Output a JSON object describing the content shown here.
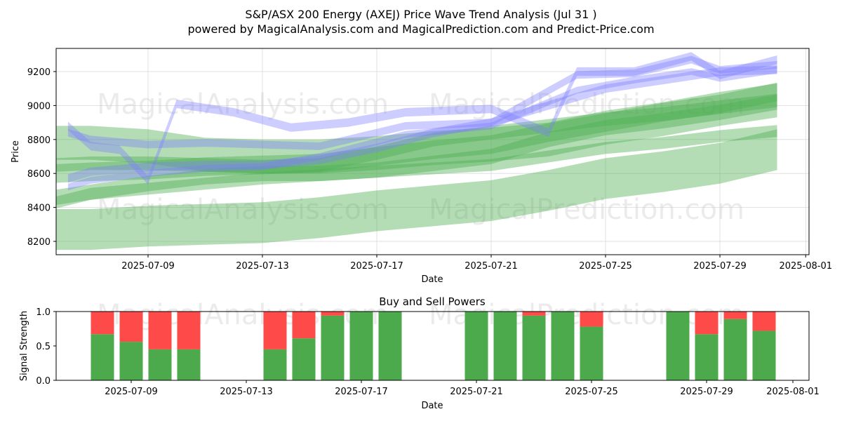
{
  "title_line1": "S&P/ASX 200 Energy (AXEJ) Price Wave Trend Analysis (Jul 31 )",
  "title_line2": "powered by MagicalAnalysis.com and MagicalPrediction.com and Predict-Price.com",
  "watermarks": [
    "MagicalAnalysis.com",
    "MagicalPrediction.com"
  ],
  "colors": {
    "blue": "#7b7bff",
    "green": "#4caf50",
    "buy": "#4caa4c",
    "sell": "#ff4a4a",
    "grid": "#d9d9d9"
  },
  "chart_data": [
    {
      "type": "area",
      "title": "",
      "xlabel": "Date",
      "ylabel": "Price",
      "x_ticks": [
        "2025-07-09",
        "2025-07-13",
        "2025-07-17",
        "2025-07-21",
        "2025-07-25",
        "2025-07-29",
        "2025-08-01"
      ],
      "y_ticks": [
        8200,
        8400,
        8600,
        8800,
        9000,
        9200
      ],
      "xlim": [
        "2025-07-05",
        "2025-07-31"
      ],
      "ylim": [
        8120,
        9330
      ],
      "blue_bands": [
        {
          "x": [
            6.2,
            7,
            9,
            11,
            13,
            15,
            18,
            21,
            24,
            26,
            28,
            29,
            31
          ],
          "y": [
            8840,
            8800,
            8770,
            8780,
            8770,
            8760,
            8880,
            8900,
            9180,
            9190,
            9270,
            9210,
            9240
          ],
          "w": 45
        },
        {
          "x": [
            6.2,
            7,
            9,
            11,
            13,
            15,
            18,
            21,
            24,
            26,
            28,
            29,
            31
          ],
          "y": [
            8520,
            8560,
            8600,
            8630,
            8640,
            8700,
            8830,
            8880,
            9090,
            9150,
            9200,
            9160,
            9210
          ],
          "w": 40
        },
        {
          "x": [
            6.2,
            7,
            8,
            9,
            10,
            12,
            14,
            16,
            18,
            21,
            23,
            24,
            26,
            28,
            29,
            31
          ],
          "y": [
            8880,
            8760,
            8740,
            8560,
            9010,
            8960,
            8870,
            8900,
            8960,
            8980,
            8840,
            9200,
            9200,
            9290,
            9180,
            9270
          ],
          "w": 50
        },
        {
          "x": [
            6.2,
            7,
            9,
            11,
            13,
            15,
            17,
            19,
            21,
            23,
            25,
            27,
            29,
            31
          ],
          "y": [
            8570,
            8610,
            8640,
            8650,
            8650,
            8680,
            8750,
            8840,
            8900,
            9000,
            9100,
            9150,
            9200,
            9210
          ],
          "w": 50
        }
      ],
      "green_bands": [
        {
          "x": [
            5.8,
            7,
            9,
            11,
            13,
            15,
            17,
            19,
            21,
            23,
            25,
            27,
            29,
            31
          ],
          "y": [
            8780,
            8780,
            8760,
            8710,
            8700,
            8700,
            8720,
            8750,
            8770,
            8800,
            8870,
            8920,
            8980,
            9030
          ],
          "w": 200
        },
        {
          "x": [
            5.8,
            7,
            9,
            11,
            13,
            15,
            17,
            19,
            21,
            23,
            25,
            27,
            29,
            31
          ],
          "y": [
            8600,
            8610,
            8620,
            8640,
            8650,
            8660,
            8700,
            8740,
            8770,
            8840,
            8900,
            8960,
            9010,
            9080
          ],
          "w": 110
        },
        {
          "x": [
            5.8,
            7,
            9,
            11,
            13,
            15,
            17,
            19,
            21,
            23,
            25,
            27,
            29,
            31
          ],
          "y": [
            8460,
            8490,
            8540,
            8580,
            8600,
            8600,
            8620,
            8660,
            8700,
            8800,
            8870,
            8910,
            8960,
            9020
          ],
          "w": 90
        },
        {
          "x": [
            5.8,
            7,
            9,
            11,
            13,
            15,
            17,
            19,
            21,
            23,
            25,
            27,
            29,
            31
          ],
          "y": [
            8650,
            8660,
            8660,
            8650,
            8640,
            8650,
            8720,
            8800,
            8840,
            8880,
            8920,
            8950,
            8990,
            9030
          ],
          "w": 80
        },
        {
          "x": [
            5.8,
            7,
            9,
            11,
            13,
            15,
            17,
            19,
            21,
            23,
            25,
            27,
            29,
            31
          ],
          "y": [
            8430,
            8480,
            8510,
            8540,
            8570,
            8590,
            8610,
            8630,
            8650,
            8700,
            8750,
            8780,
            8820,
            8850
          ],
          "w": 70
        },
        {
          "x": [
            5.8,
            7,
            9,
            11,
            13,
            15,
            17,
            19,
            21,
            23,
            25,
            27,
            29,
            31
          ],
          "y": [
            8270,
            8270,
            8290,
            8300,
            8310,
            8340,
            8380,
            8410,
            8440,
            8500,
            8570,
            8610,
            8660,
            8740
          ],
          "w": 240
        }
      ],
      "signal_chart": {
        "title": "Buy and Sell Powers",
        "xlabel": "Date",
        "ylabel": "Signal Strength",
        "y_ticks": [
          "0.0",
          "0.5",
          "1.0"
        ],
        "x_ticks": [
          "2025-07-09",
          "2025-07-13",
          "2025-07-17",
          "2025-07-21",
          "2025-07-25",
          "2025-07-29",
          "2025-08-01"
        ],
        "days": [
          8,
          9,
          10,
          11,
          14,
          15,
          16,
          17,
          18,
          21,
          22,
          23,
          24,
          25,
          28,
          29,
          30,
          31
        ],
        "buy": [
          0.67,
          0.56,
          0.45,
          0.45,
          0.45,
          0.61,
          0.94,
          1.0,
          1.0,
          1.0,
          1.0,
          0.94,
          1.0,
          0.78,
          1.0,
          0.67,
          0.89,
          0.72
        ]
      }
    }
  ]
}
